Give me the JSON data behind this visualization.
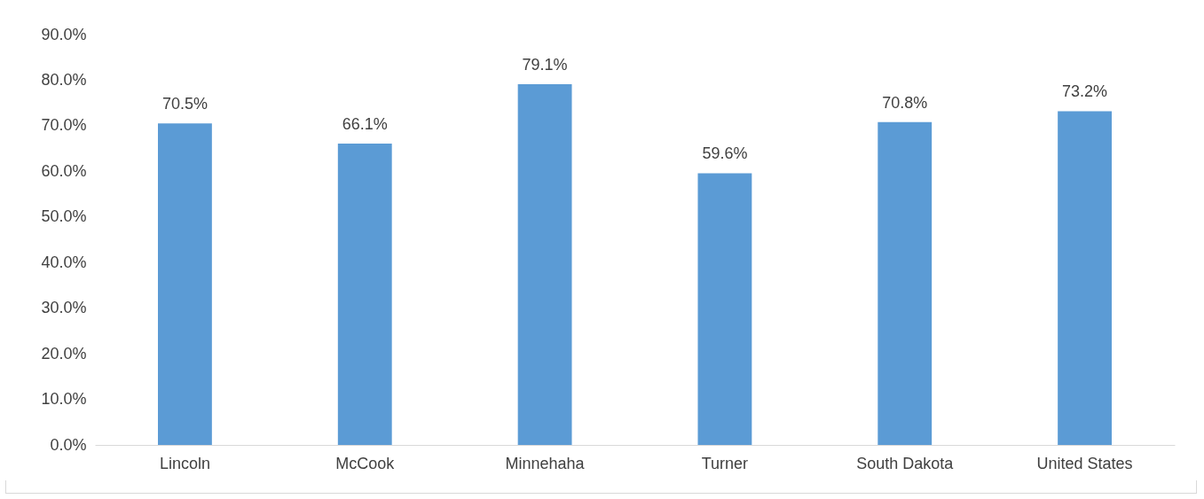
{
  "chart_data": {
    "type": "bar",
    "categories": [
      "Lincoln",
      "McCook",
      "Minnehaha",
      "Turner",
      "South Dakota",
      "United States"
    ],
    "values": [
      70.5,
      66.1,
      79.1,
      59.6,
      70.8,
      73.2
    ],
    "value_labels": [
      "70.5%",
      "66.1%",
      "79.1%",
      "59.6%",
      "70.8%",
      "73.2%"
    ],
    "color": "#5b9bd5",
    "ylim": [
      0,
      90
    ],
    "yticks": [
      {
        "value": 0,
        "label": "0.0%"
      },
      {
        "value": 10,
        "label": "10.0%"
      },
      {
        "value": 20,
        "label": "20.0%"
      },
      {
        "value": 30,
        "label": "30.0%"
      },
      {
        "value": 40,
        "label": "40.0%"
      },
      {
        "value": 50,
        "label": "50.0%"
      },
      {
        "value": 60,
        "label": "60.0%"
      },
      {
        "value": 70,
        "label": "70.0%"
      },
      {
        "value": 80,
        "label": "80.0%"
      },
      {
        "value": 90,
        "label": "90.0%"
      }
    ],
    "grid": false
  }
}
